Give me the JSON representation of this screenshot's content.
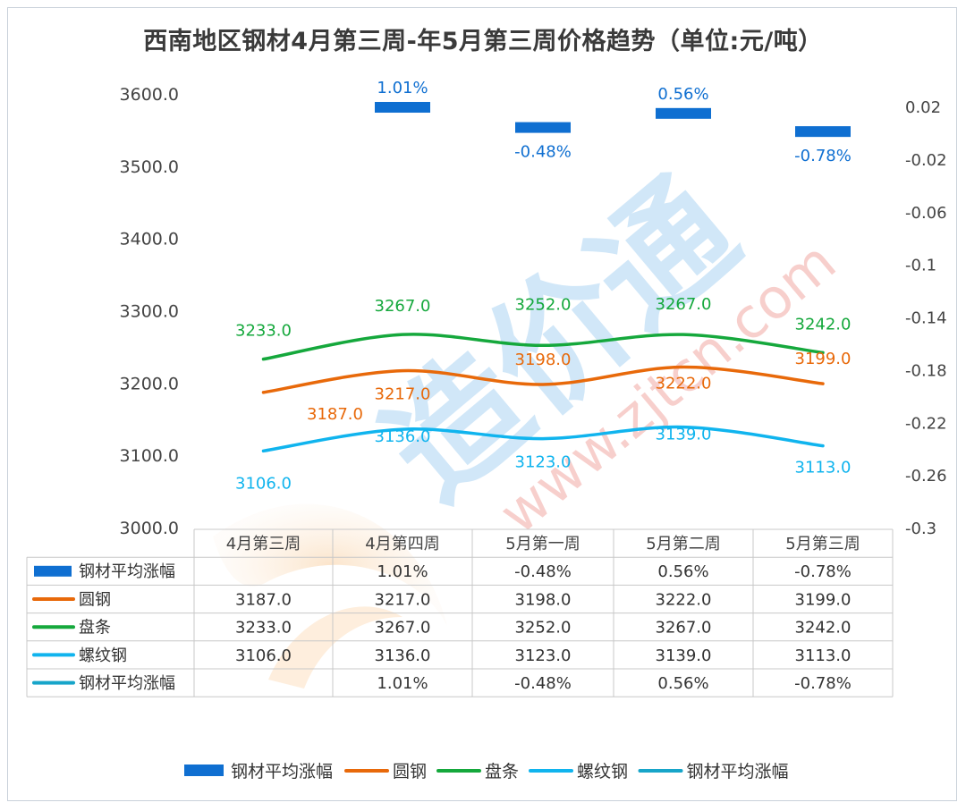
{
  "chart_data": {
    "type": "line",
    "title": "西南地区钢材4月第三周-年5月第三周价格趋势（单位:元/吨）",
    "categories": [
      "4月第三周",
      "4月第四周",
      "5月第一周",
      "5月第二周",
      "5月第三周"
    ],
    "y_left": {
      "ticks": [
        "3600.0",
        "3500.0",
        "3400.0",
        "3300.0",
        "3200.0",
        "3100.0",
        "3000.0"
      ],
      "range": [
        3000,
        3600
      ]
    },
    "y_right": {
      "ticks": [
        "0.02",
        "-0.02",
        "-0.06",
        "-0.1",
        "-0.14",
        "-0.18",
        "-0.22",
        "-0.26",
        "-0.3"
      ],
      "range": [
        -0.3,
        0.02
      ]
    },
    "series": [
      {
        "name": "钢材平均涨幅",
        "kind": "bar",
        "axis": "right",
        "color": "#0f6fd1",
        "values": [
          null,
          0.0101,
          -0.0048,
          0.0056,
          -0.0078
        ],
        "labels": [
          "",
          "1.01%",
          "-0.48%",
          "0.56%",
          "-0.78%"
        ]
      },
      {
        "name": "圆钢",
        "kind": "line",
        "axis": "left",
        "color": "#e8690a",
        "values": [
          3187.0,
          3217.0,
          3198.0,
          3222.0,
          3199.0
        ],
        "labels": [
          "3187.0",
          "3217.0",
          "3198.0",
          "3222.0",
          "3199.0"
        ]
      },
      {
        "name": "盘条",
        "kind": "line",
        "axis": "left",
        "color": "#15a83c",
        "values": [
          3233.0,
          3267.0,
          3252.0,
          3267.0,
          3242.0
        ],
        "labels": [
          "3233.0",
          "3267.0",
          "3252.0",
          "3267.0",
          "3242.0"
        ]
      },
      {
        "name": "螺纹钢",
        "kind": "line",
        "axis": "left",
        "color": "#10b4ee",
        "values": [
          3106.0,
          3136.0,
          3123.0,
          3139.0,
          3113.0
        ],
        "labels": [
          "3106.0",
          "3136.0",
          "3123.0",
          "3139.0",
          "3113.0"
        ]
      },
      {
        "name": "钢材平均涨幅",
        "kind": "line",
        "axis": "table",
        "color": "#17a5c9",
        "values": [
          null,
          0.0101,
          -0.0048,
          0.0056,
          -0.0078
        ],
        "labels": [
          "",
          "1.01%",
          "-0.48%",
          "0.56%",
          "-0.78%"
        ]
      }
    ],
    "grid": false,
    "legend": "bottom",
    "watermark": {
      "text": "造价通",
      "url": "www.zjtcn.com"
    }
  }
}
